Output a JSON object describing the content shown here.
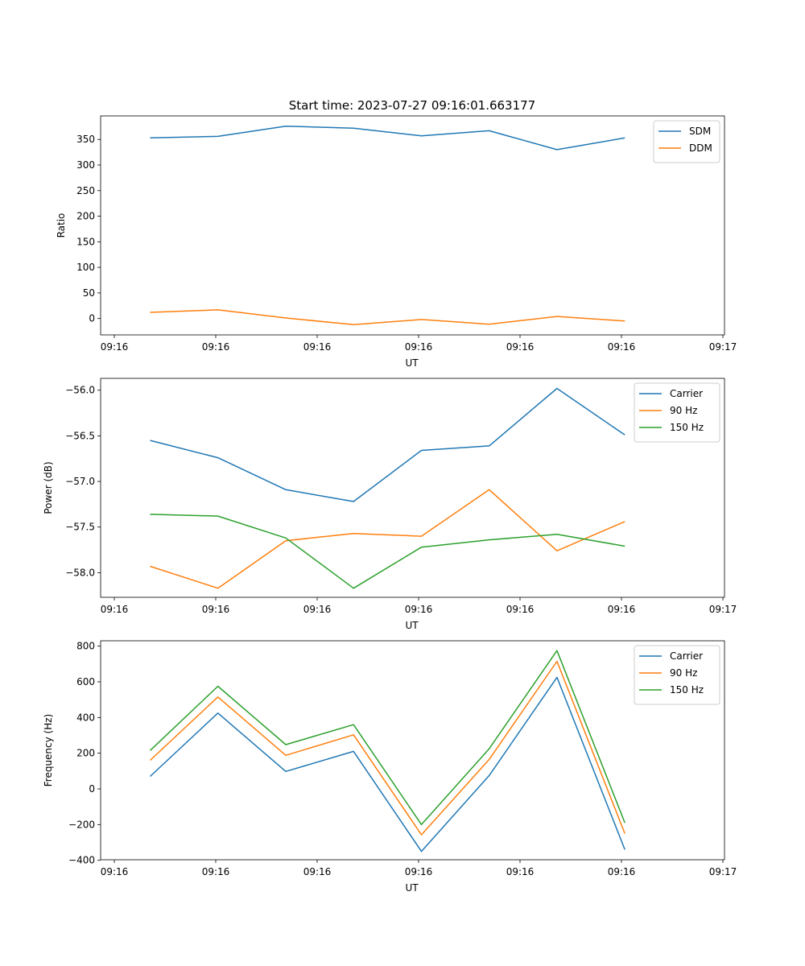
{
  "figure_title": "Start time: 2023-07-27 09:16:01.663177",
  "colors": {
    "series1": "#1f77b4",
    "series2": "#ff7f0e",
    "series3": "#2ca02c"
  },
  "chart_data": [
    {
      "type": "line",
      "ylabel": "Ratio",
      "xlabel": "UT",
      "x_tick_labels": [
        "09:16",
        "09:16",
        "09:16",
        "09:16",
        "09:16",
        "09:16",
        "09:17"
      ],
      "y_ticks": [
        0,
        50,
        100,
        150,
        200,
        250,
        300,
        350
      ],
      "y_tick_labels": [
        "0",
        "50",
        "100",
        "150",
        "200",
        "250",
        "300",
        "350"
      ],
      "ylim": [
        -32,
        396
      ],
      "xlim": [
        -0.73,
        8.47
      ],
      "x": [
        0,
        1,
        2,
        3,
        4,
        5,
        6,
        7
      ],
      "legend_position": "top-right",
      "series": [
        {
          "name": "SDM",
          "color": "#1f77b4",
          "values": [
            353,
            356,
            376,
            372,
            357,
            367,
            330,
            353
          ]
        },
        {
          "name": "DDM",
          "color": "#ff7f0e",
          "values": [
            12,
            17,
            1,
            -12,
            -2,
            -11,
            4,
            -5
          ]
        }
      ]
    },
    {
      "type": "line",
      "ylabel": "Power (dB)",
      "xlabel": "UT",
      "x_tick_labels": [
        "09:16",
        "09:16",
        "09:16",
        "09:16",
        "09:16",
        "09:16",
        "09:17"
      ],
      "y_ticks": [
        -58.0,
        -57.5,
        -57.0,
        -56.5,
        -56.0
      ],
      "y_tick_labels": [
        "−58.0",
        "−57.5",
        "−57.0",
        "−56.5",
        "−56.0"
      ],
      "ylim": [
        -58.27,
        -55.87
      ],
      "xlim": [
        -0.73,
        8.47
      ],
      "x": [
        0,
        1,
        2,
        3,
        4,
        5,
        6,
        7
      ],
      "legend_position": "top-right",
      "series": [
        {
          "name": "Carrier",
          "color": "#1f77b4",
          "values": [
            -56.55,
            -56.74,
            -57.09,
            -57.22,
            -56.66,
            -56.61,
            -55.98,
            -56.49
          ]
        },
        {
          "name": "90 Hz",
          "color": "#ff7f0e",
          "values": [
            -57.93,
            -58.17,
            -57.65,
            -57.57,
            -57.6,
            -57.09,
            -57.76,
            -57.44
          ]
        },
        {
          "name": "150 Hz",
          "color": "#2ca02c",
          "values": [
            -57.36,
            -57.38,
            -57.62,
            -58.17,
            -57.72,
            -57.64,
            -57.58,
            -57.71
          ]
        }
      ]
    },
    {
      "type": "line",
      "ylabel": "Frequency (Hz)",
      "xlabel": "UT",
      "x_tick_labels": [
        "09:16",
        "09:16",
        "09:16",
        "09:16",
        "09:16",
        "09:16",
        "09:17"
      ],
      "y_ticks": [
        -400,
        -200,
        0,
        200,
        400,
        600,
        800
      ],
      "y_tick_labels": [
        "−400",
        "−200",
        "0",
        "200",
        "400",
        "600",
        "800"
      ],
      "ylim": [
        -397,
        830
      ],
      "xlim": [
        -0.73,
        8.47
      ],
      "x": [
        0,
        1,
        2,
        3,
        4,
        5,
        6,
        7
      ],
      "legend_position": "top-right",
      "series": [
        {
          "name": "Carrier",
          "color": "#1f77b4",
          "values": [
            70,
            425,
            98,
            210,
            -350,
            75,
            625,
            -340
          ]
        },
        {
          "name": "90 Hz",
          "color": "#ff7f0e",
          "values": [
            160,
            515,
            188,
            303,
            -257,
            165,
            715,
            -250
          ]
        },
        {
          "name": "150 Hz",
          "color": "#2ca02c",
          "values": [
            215,
            575,
            248,
            360,
            -200,
            225,
            775,
            -190
          ]
        }
      ]
    }
  ]
}
